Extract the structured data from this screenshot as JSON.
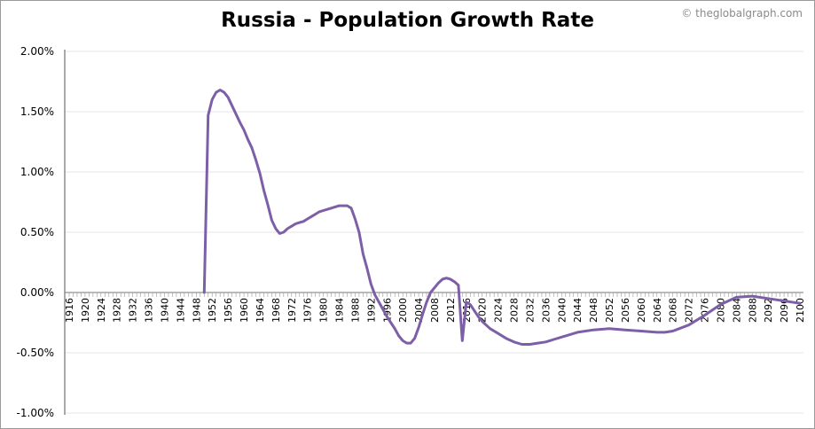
{
  "chart_data": {
    "type": "line",
    "title": "Russia - Population Growth Rate",
    "source": "© theglobalgraph.com",
    "xlabel": "",
    "ylabel": "",
    "ylim": [
      -1.0,
      2.0
    ],
    "yticks": [
      "2.00%",
      "1.50%",
      "1.00%",
      "0.50%",
      "0.00%",
      "-0.50%",
      "-1.00%"
    ],
    "xlim": [
      1916,
      2100
    ],
    "xticks": [
      "1916",
      "1920",
      "1924",
      "1928",
      "1932",
      "1936",
      "1940",
      "1944",
      "1948",
      "1952",
      "1956",
      "1960",
      "1964",
      "1968",
      "1972",
      "1976",
      "1980",
      "1984",
      "1988",
      "1992",
      "1996",
      "2000",
      "2004",
      "2008",
      "2012",
      "2016",
      "2020",
      "2024",
      "2028",
      "2032",
      "2036",
      "2040",
      "2044",
      "2048",
      "2052",
      "2056",
      "2060",
      "2064",
      "2068",
      "2072",
      "2076",
      "2080",
      "2084",
      "2088",
      "2092",
      "2096",
      "2100"
    ],
    "line_color": "#7d5fa8",
    "grid": "horizontal",
    "series": [
      {
        "x": [
          1950,
          1951,
          1952,
          1953,
          1954,
          1955,
          1956,
          1957,
          1958,
          1959,
          1960,
          1961,
          1962,
          1963,
          1964,
          1965,
          1966,
          1967,
          1968,
          1969,
          1970,
          1971,
          1972,
          1973,
          1974,
          1975,
          1976,
          1977,
          1978,
          1979,
          1980,
          1981,
          1982,
          1983,
          1984,
          1985,
          1986,
          1987,
          1988,
          1989,
          1990,
          1991,
          1992,
          1993,
          1994,
          1995,
          1996,
          1997,
          1998,
          1999,
          2000,
          2001,
          2002,
          2003,
          2004,
          2005,
          2006,
          2007,
          2008,
          2009,
          2010,
          2011,
          2012,
          2013,
          2014,
          2015,
          2016,
          2017,
          2018,
          2019,
          2020,
          2022,
          2024,
          2026,
          2028,
          2030,
          2032,
          2034,
          2036,
          2038,
          2040,
          2044,
          2048,
          2052,
          2056,
          2060,
          2064,
          2066,
          2068,
          2072,
          2076,
          2080,
          2084,
          2088,
          2092,
          2096,
          2100
        ],
        "y": [
          0.0,
          1.47,
          1.6,
          1.66,
          1.68,
          1.66,
          1.62,
          1.55,
          1.48,
          1.41,
          1.35,
          1.27,
          1.2,
          1.1,
          0.99,
          0.85,
          0.73,
          0.6,
          0.53,
          0.49,
          0.5,
          0.53,
          0.55,
          0.57,
          0.58,
          0.59,
          0.61,
          0.63,
          0.65,
          0.67,
          0.68,
          0.69,
          0.7,
          0.71,
          0.72,
          0.72,
          0.72,
          0.7,
          0.61,
          0.5,
          0.32,
          0.2,
          0.07,
          -0.02,
          -0.08,
          -0.14,
          -0.2,
          -0.25,
          -0.3,
          -0.36,
          -0.4,
          -0.42,
          -0.42,
          -0.38,
          -0.29,
          -0.18,
          -0.08,
          0.0,
          0.04,
          0.08,
          0.11,
          0.12,
          0.11,
          0.09,
          0.06,
          -0.4,
          -0.08,
          -0.1,
          -0.15,
          -0.2,
          -0.24,
          -0.3,
          -0.34,
          -0.38,
          -0.41,
          -0.43,
          -0.43,
          -0.42,
          -0.41,
          -0.39,
          -0.37,
          -0.33,
          -0.31,
          -0.3,
          -0.31,
          -0.32,
          -0.33,
          -0.33,
          -0.32,
          -0.27,
          -0.19,
          -0.1,
          -0.04,
          -0.03,
          -0.05,
          -0.07,
          -0.09
        ]
      }
    ]
  }
}
